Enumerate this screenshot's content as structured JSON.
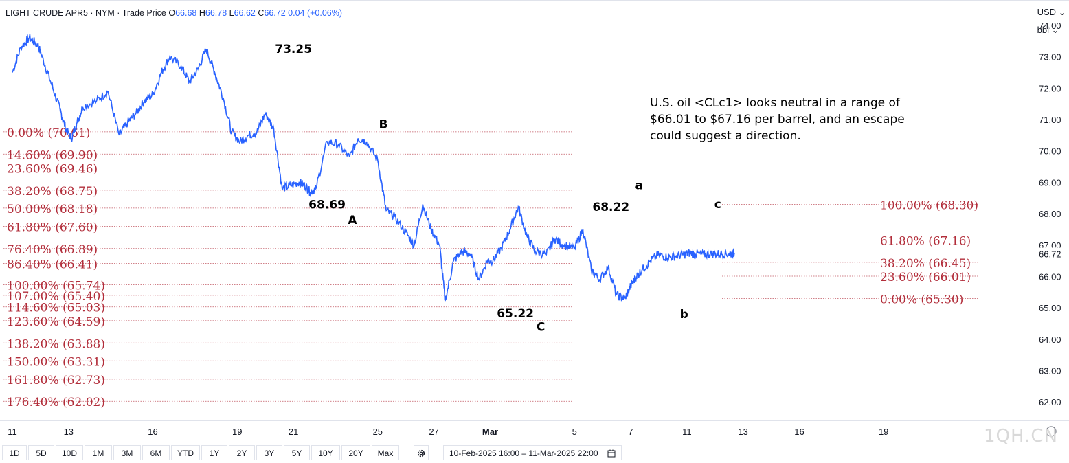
{
  "header": {
    "symbol": "LIGHT CRUDE APR5 · NYM · Trade Price",
    "open_label": "O",
    "open": "66.68",
    "high_label": "H",
    "high": "66.78",
    "low_label": "L",
    "low": "66.62",
    "close_label": "C",
    "close": "66.72",
    "change": "0.04 (+0.06%)"
  },
  "price_panel": {
    "currency": "USD",
    "currency_chevron": "⌄",
    "unit": "bbl",
    "unit_chevron": "⌄",
    "last_price": "66.72"
  },
  "annotation": "U.S. oil <CLc1> looks neutral in a range of $66.01 to $67.16 per barrel, and an escape could suggest a direction.",
  "watermark": "1QH.CN",
  "colors": {
    "price_line": "#2962ff",
    "fib": "#b22d3a",
    "text": "#131722",
    "axis": "#787b86"
  },
  "toolbar": {
    "periods": [
      "1D",
      "5D",
      "10D",
      "1M",
      "3M",
      "6M",
      "YTD",
      "1Y",
      "2Y",
      "3Y",
      "5Y",
      "10Y",
      "20Y",
      "Max"
    ],
    "settings_icon": "gear-icon",
    "date_range": "10-Feb-2025 16:00 – 11-Mar-2025 22:00",
    "calendar_icon": "calendar-icon"
  },
  "chart_data": {
    "type": "line",
    "ylim": [
      61.5,
      74.7
    ],
    "y_ticks": [
      "62.00",
      "63.00",
      "64.00",
      "65.00",
      "66.00",
      "67.00",
      "68.00",
      "69.00",
      "70.00",
      "71.00",
      "72.00",
      "73.00",
      "74.00"
    ],
    "x_ticks": [
      "11",
      "13",
      "16",
      "19",
      "21",
      "25",
      "27",
      "Mar",
      "5",
      "7",
      "11",
      "13",
      "16",
      "19"
    ],
    "x_tick_index": [
      0,
      2,
      5,
      8,
      10,
      13,
      15,
      17,
      20,
      22,
      24,
      26,
      28,
      31
    ],
    "series": [
      {
        "x": [
          0,
          0.3,
          0.6,
          0.9,
          1.1,
          1.4,
          1.7,
          1.9,
          2.1,
          2.3,
          2.5,
          3.0,
          3.4,
          3.8,
          4.1,
          4.4,
          4.7,
          5.0,
          5.3,
          5.6,
          6.0,
          6.3,
          6.6,
          6.9,
          7.2,
          7.5,
          7.8,
          8.1,
          8.4,
          8.7,
          9.0,
          9.3,
          9.6,
          9.9,
          10.2,
          10.4,
          10.6,
          10.8,
          11.2,
          11.6,
          12.0,
          12.3,
          12.6,
          13.0,
          13.3,
          13.6,
          14.0,
          14.3,
          14.6,
          14.9,
          15.2,
          15.4,
          15.7,
          16.0,
          16.3,
          16.6,
          16.9,
          17.1,
          17.4,
          17.7,
          18.0,
          18.3,
          18.6,
          19.0,
          19.3,
          19.6,
          20.0,
          20.3,
          20.6,
          20.9,
          21.2,
          21.5,
          21.8,
          22.0,
          22.2,
          22.4,
          22.7,
          23.0,
          23.3,
          23.6,
          23.9,
          24.1,
          24.3,
          24.6,
          24.9,
          25.2,
          25.5,
          25.7
        ],
        "values": [
          72.5,
          73.3,
          73.6,
          73.4,
          72.9,
          72.1,
          71.3,
          70.7,
          70.4,
          70.9,
          71.4,
          71.6,
          71.9,
          70.5,
          70.9,
          71.2,
          71.6,
          71.8,
          72.5,
          73.0,
          72.7,
          72.2,
          72.6,
          73.25,
          72.5,
          71.7,
          70.6,
          70.3,
          70.5,
          70.6,
          71.2,
          70.7,
          68.8,
          68.9,
          69.0,
          68.9,
          68.69,
          68.8,
          70.3,
          70.2,
          69.8,
          70.4,
          70.3,
          69.7,
          68.1,
          67.9,
          67.4,
          67.0,
          68.3,
          67.5,
          67.0,
          65.22,
          66.5,
          66.8,
          66.7,
          65.9,
          66.5,
          66.5,
          66.9,
          67.5,
          68.22,
          67.3,
          66.8,
          66.7,
          67.2,
          67.0,
          66.9,
          67.5,
          66.2,
          65.9,
          66.3,
          65.4,
          65.3,
          65.7,
          66.0,
          66.2,
          66.5,
          66.7,
          66.6,
          66.65,
          66.7,
          66.75,
          66.72,
          66.7,
          66.72,
          66.72,
          66.72,
          66.72
        ]
      }
    ],
    "point_labels": [
      {
        "text": "73.25",
        "x": 9.1,
        "y": 73.25,
        "pos": "right"
      },
      {
        "text": "B",
        "x": 13.2,
        "y": 70.55,
        "pos": "above"
      },
      {
        "text": "68.69",
        "x": 12.0,
        "y": 68.69,
        "pos": "below-left"
      },
      {
        "text": "A",
        "x": 12.1,
        "y": 68.2,
        "pos": "below"
      },
      {
        "text": "65.22",
        "x": 18.7,
        "y": 65.22,
        "pos": "below-left"
      },
      {
        "text": "C",
        "x": 18.8,
        "y": 64.8,
        "pos": "below"
      },
      {
        "text": "68.22",
        "x": 22.2,
        "y": 68.22,
        "pos": "left"
      },
      {
        "text": "a",
        "x": 22.3,
        "y": 68.6,
        "pos": "above"
      },
      {
        "text": "b",
        "x": 23.9,
        "y": 65.2,
        "pos": "below"
      },
      {
        "text": "c",
        "x": 25.1,
        "y": 68.0,
        "pos": "above"
      }
    ],
    "fib_left": [
      {
        "label": "0.00% (70.61)",
        "value": 70.61
      },
      {
        "label": "14.60% (69.90)",
        "value": 69.9
      },
      {
        "label": "23.60% (69.46)",
        "value": 69.46
      },
      {
        "label": "38.20% (68.75)",
        "value": 68.75
      },
      {
        "label": "50.00% (68.18)",
        "value": 68.18
      },
      {
        "label": "61.80% (67.60)",
        "value": 67.6
      },
      {
        "label": "76.40% (66.89)",
        "value": 66.89
      },
      {
        "label": "86.40% (66.41)",
        "value": 66.41
      },
      {
        "label": "100.00% (65.74)",
        "value": 65.74
      },
      {
        "label": "107.00% (65.40)",
        "value": 65.4
      },
      {
        "label": "114.60% (65.03)",
        "value": 65.03
      },
      {
        "label": "123.60% (64.59)",
        "value": 64.59
      },
      {
        "label": "138.20% (63.88)",
        "value": 63.88
      },
      {
        "label": "150.00% (63.31)",
        "value": 63.31
      },
      {
        "label": "161.80% (62.73)",
        "value": 62.73
      },
      {
        "label": "176.40% (62.02)",
        "value": 62.02
      }
    ],
    "fib_right": [
      {
        "label": "100.00% (68.30)",
        "value": 68.3
      },
      {
        "label": "61.80% (67.16)",
        "value": 67.16
      },
      {
        "label": "38.20% (66.45)",
        "value": 66.45
      },
      {
        "label": "23.60% (66.01)",
        "value": 66.01
      },
      {
        "label": "0.00% (65.30)",
        "value": 65.3
      }
    ]
  }
}
